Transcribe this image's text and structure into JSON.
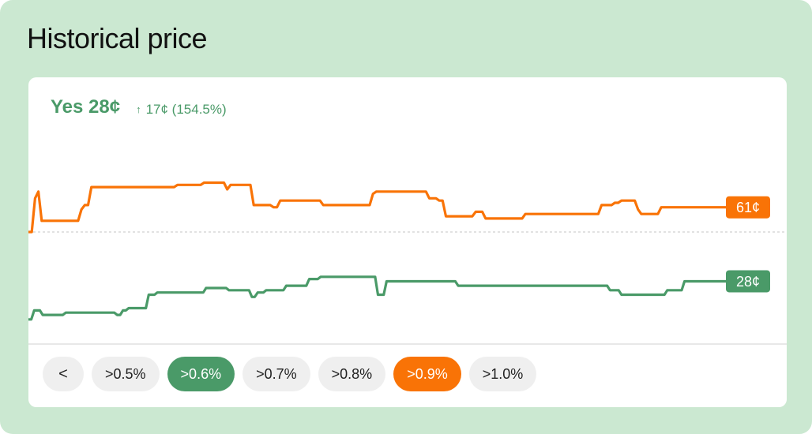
{
  "title": "Historical price",
  "headline": {
    "label": "Yes 28¢",
    "arrow": "↑",
    "change": "17¢ (154.5%)"
  },
  "chart_data": {
    "type": "line",
    "colors": {
      "yes": "#4a9a68",
      "no": "#f97306"
    },
    "reference_line_value": 50,
    "ylim": [
      0,
      88
    ],
    "series": [
      {
        "key": "no",
        "end_label": "61¢",
        "values": [
          50,
          50,
          65,
          68,
          55,
          55,
          55,
          55,
          55,
          55,
          55,
          55,
          55,
          55,
          55,
          55,
          60,
          62,
          62,
          70,
          70,
          70,
          70,
          70,
          70,
          70,
          70,
          70,
          70,
          70,
          70,
          70,
          70,
          70,
          70,
          70,
          70,
          70,
          70,
          70,
          70,
          70,
          70,
          70,
          70,
          71,
          71,
          71,
          71,
          71,
          71,
          71,
          71,
          72,
          72,
          72,
          72,
          72,
          72,
          72,
          69,
          71,
          71,
          71,
          71,
          71,
          71,
          71,
          62,
          62,
          62,
          62,
          62,
          62,
          61,
          61,
          64,
          64,
          64,
          64,
          64,
          64,
          64,
          64,
          64,
          64,
          64,
          64,
          64,
          62,
          62,
          62,
          62,
          62,
          62,
          62,
          62,
          62,
          62,
          62,
          62,
          62,
          62,
          62,
          67,
          68,
          68,
          68,
          68,
          68,
          68,
          68,
          68,
          68,
          68,
          68,
          68,
          68,
          68,
          68,
          68,
          65,
          65,
          65,
          64,
          64,
          57,
          57,
          57,
          57,
          57,
          57,
          57,
          57,
          57,
          59,
          59,
          59,
          56,
          56,
          56,
          56,
          56,
          56,
          56,
          56,
          56,
          56,
          56,
          56,
          58,
          58,
          58,
          58,
          58,
          58,
          58,
          58,
          58,
          58,
          58,
          58,
          58,
          58,
          58,
          58,
          58,
          58,
          58,
          58,
          58,
          58,
          58,
          62,
          62,
          62,
          62,
          63,
          63,
          64,
          64,
          64,
          64,
          64,
          60,
          58,
          58,
          58,
          58,
          58,
          58,
          61,
          61,
          61,
          61,
          61,
          61,
          61,
          61,
          61,
          61,
          61,
          61,
          61,
          61,
          61,
          61,
          61,
          61,
          61,
          61,
          61
        ]
      },
      {
        "key": "yes",
        "end_label": "28¢",
        "values": [
          11,
          11,
          15,
          15,
          15,
          13,
          13,
          13,
          13,
          13,
          13,
          13,
          13,
          14,
          14,
          14,
          14,
          14,
          14,
          14,
          14,
          14,
          14,
          14,
          14,
          14,
          14,
          14,
          14,
          14,
          14,
          13,
          13,
          15,
          15,
          16,
          16,
          16,
          16,
          16,
          16,
          16,
          22,
          22,
          22,
          23,
          23,
          23,
          23,
          23,
          23,
          23,
          23,
          23,
          23,
          23,
          23,
          23,
          23,
          23,
          23,
          23,
          25,
          25,
          25,
          25,
          25,
          25,
          25,
          25,
          24,
          24,
          24,
          24,
          24,
          24,
          24,
          24,
          21,
          21,
          23,
          23,
          23,
          24,
          24,
          24,
          24,
          24,
          24,
          24,
          26,
          26,
          26,
          26,
          26,
          26,
          26,
          26,
          29,
          29,
          29,
          29,
          30,
          30,
          30,
          30,
          30,
          30,
          30,
          30,
          30,
          30,
          30,
          30,
          30,
          30,
          30,
          30,
          30,
          30,
          30,
          30,
          22,
          22,
          22,
          28,
          28,
          28,
          28,
          28,
          28,
          28,
          28,
          28,
          28,
          28,
          28,
          28,
          28,
          28,
          28,
          28,
          28,
          28,
          28,
          28,
          28,
          28,
          28,
          28,
          26,
          26,
          26,
          26,
          26,
          26,
          26,
          26,
          26,
          26,
          26,
          26,
          26,
          26,
          26,
          26,
          26,
          26,
          26,
          26,
          26,
          26,
          26,
          26,
          26,
          26,
          26,
          26,
          26,
          26,
          26,
          26,
          26,
          26,
          26,
          26,
          26,
          26,
          26,
          26,
          26,
          26,
          26,
          26,
          26,
          26,
          26,
          26,
          26,
          26,
          26,
          26,
          26,
          24,
          24,
          24,
          24,
          22,
          22,
          22,
          22,
          22,
          22,
          22,
          22,
          22,
          22,
          22,
          22,
          22,
          22,
          22,
          22,
          24,
          24,
          24,
          24,
          24,
          24,
          28,
          28,
          28,
          28,
          28,
          28,
          28,
          28,
          28,
          28,
          28,
          28,
          28,
          28,
          28,
          28
        ]
      }
    ]
  },
  "filters": {
    "prev_label": "<",
    "buttons": [
      {
        "label": ">0.5%",
        "state": "default"
      },
      {
        "label": ">0.6%",
        "state": "green"
      },
      {
        "label": ">0.7%",
        "state": "default"
      },
      {
        "label": ">0.8%",
        "state": "default"
      },
      {
        "label": ">0.9%",
        "state": "orange"
      },
      {
        "label": ">1.0%",
        "state": "default"
      }
    ]
  }
}
